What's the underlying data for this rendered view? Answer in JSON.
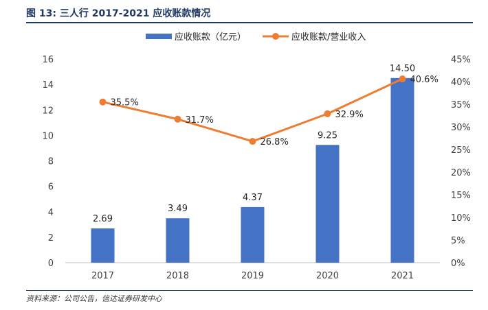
{
  "header": {
    "figure_label": "图 13:",
    "title": "三人行 2017-2021 应收账款情况"
  },
  "source": "资料来源：公司公告，信达证券研发中心",
  "colors": {
    "bar": "#4472c4",
    "line": "#ed7d31",
    "heading": "#1f3864"
  },
  "chart_data": {
    "type": "bar",
    "title": "三人行 2017-2021 应收账款情况",
    "categories": [
      "2017",
      "2018",
      "2019",
      "2020",
      "2021"
    ],
    "series": [
      {
        "name": "应收账款（亿元）",
        "type": "bar",
        "axis": "left",
        "values": [
          2.69,
          3.49,
          4.37,
          9.25,
          14.5
        ],
        "labels": [
          "2.69",
          "3.49",
          "4.37",
          "9.25",
          "14.50"
        ]
      },
      {
        "name": "应收账款/营业收入",
        "type": "line",
        "axis": "right",
        "values": [
          35.5,
          31.7,
          26.8,
          32.9,
          40.6
        ],
        "labels": [
          "35.5%",
          "31.7%",
          "26.8%",
          "32.9%",
          "40.6%"
        ]
      }
    ],
    "y_left": {
      "ylim": [
        0,
        16
      ],
      "ticks": [
        "0",
        "2",
        "4",
        "6",
        "8",
        "10",
        "12",
        "14",
        "16"
      ]
    },
    "y_right": {
      "ylim": [
        0,
        45
      ],
      "ticks": [
        "0%",
        "5%",
        "10%",
        "15%",
        "20%",
        "25%",
        "30%",
        "35%",
        "40%",
        "45%"
      ]
    },
    "legend_position": "top-center",
    "grid": false
  }
}
